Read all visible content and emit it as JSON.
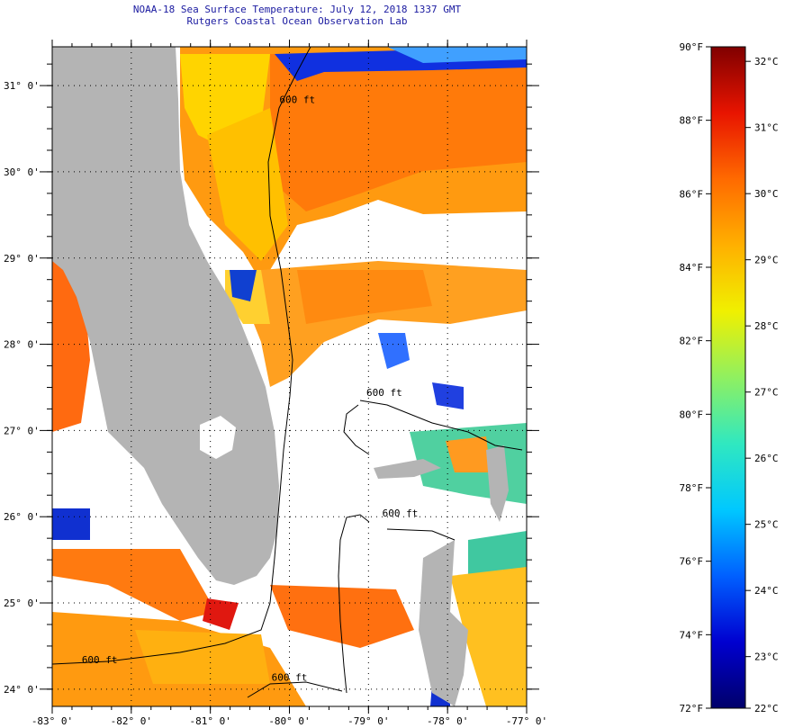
{
  "title": {
    "line1": "NOAA-18 Sea Surface Temperature:  July 12, 2018 1337 GMT",
    "line2": "Rutgers Coastal Ocean Observation Lab"
  },
  "map": {
    "lon_range": [
      -83,
      -77
    ],
    "lat_range": [
      23.8,
      31.45
    ],
    "lon_ticks": [
      {
        "value": -83,
        "label": "-83° 0'"
      },
      {
        "value": -82,
        "label": "-82° 0'"
      },
      {
        "value": -81,
        "label": "-81° 0'"
      },
      {
        "value": -80,
        "label": "-80° 0'"
      },
      {
        "value": -79,
        "label": "-79° 0'"
      },
      {
        "value": -78,
        "label": "-78° 0'"
      },
      {
        "value": -77,
        "label": "-77° 0'"
      }
    ],
    "lat_ticks": [
      {
        "value": 24,
        "label": "24° 0'"
      },
      {
        "value": 25,
        "label": "25° 0'"
      },
      {
        "value": 26,
        "label": "26° 0'"
      },
      {
        "value": 27,
        "label": "27° 0'"
      },
      {
        "value": 28,
        "label": "28° 0'"
      },
      {
        "value": 29,
        "label": "29° 0'"
      },
      {
        "value": 30,
        "label": "30° 0'"
      },
      {
        "value": 31,
        "label": "31° 0'"
      }
    ],
    "contour_labels": [
      {
        "text": "600 ft",
        "lon": -79.9,
        "lat": 30.8
      },
      {
        "text": "600 ft",
        "lon": -78.8,
        "lat": 27.4
      },
      {
        "text": "600 ft",
        "lon": -78.6,
        "lat": 26.0
      },
      {
        "text": "600 ft",
        "lon": -82.4,
        "lat": 24.3
      },
      {
        "text": "600 ft",
        "lon": -80.0,
        "lat": 24.1
      }
    ],
    "colors": {
      "land": "#b4b4b4",
      "cloud": "#ffffff",
      "grid": "#000000"
    }
  },
  "colorbar": {
    "fahrenheit": [
      {
        "value": 90,
        "label": "90°F"
      },
      {
        "value": 88,
        "label": "88°F"
      },
      {
        "value": 86,
        "label": "86°F"
      },
      {
        "value": 84,
        "label": "84°F"
      },
      {
        "value": 82,
        "label": "82°F"
      },
      {
        "value": 80,
        "label": "80°F"
      },
      {
        "value": 78,
        "label": "78°F"
      },
      {
        "value": 76,
        "label": "76°F"
      },
      {
        "value": 74,
        "label": "74°F"
      },
      {
        "value": 72,
        "label": "72°F"
      }
    ],
    "celsius": [
      {
        "value": 32,
        "label": "32°C"
      },
      {
        "value": 31,
        "label": "31°C"
      },
      {
        "value": 30,
        "label": "30°C"
      },
      {
        "value": 29,
        "label": "29°C"
      },
      {
        "value": 28,
        "label": "28°C"
      },
      {
        "value": 27,
        "label": "27°C"
      },
      {
        "value": 26,
        "label": "26°C"
      },
      {
        "value": 25,
        "label": "25°C"
      },
      {
        "value": 24,
        "label": "24°C"
      },
      {
        "value": 23,
        "label": "23°C"
      },
      {
        "value": 22,
        "label": "22°C"
      }
    ],
    "range_f": [
      72,
      90
    ],
    "range_c": [
      22.22,
      32.22
    ],
    "stops": [
      "#00006a",
      "#0000d0",
      "#0060ff",
      "#00c8ff",
      "#30e8c0",
      "#90f060",
      "#f0f000",
      "#ffb000",
      "#ff6a00",
      "#e81400",
      "#800000"
    ]
  }
}
